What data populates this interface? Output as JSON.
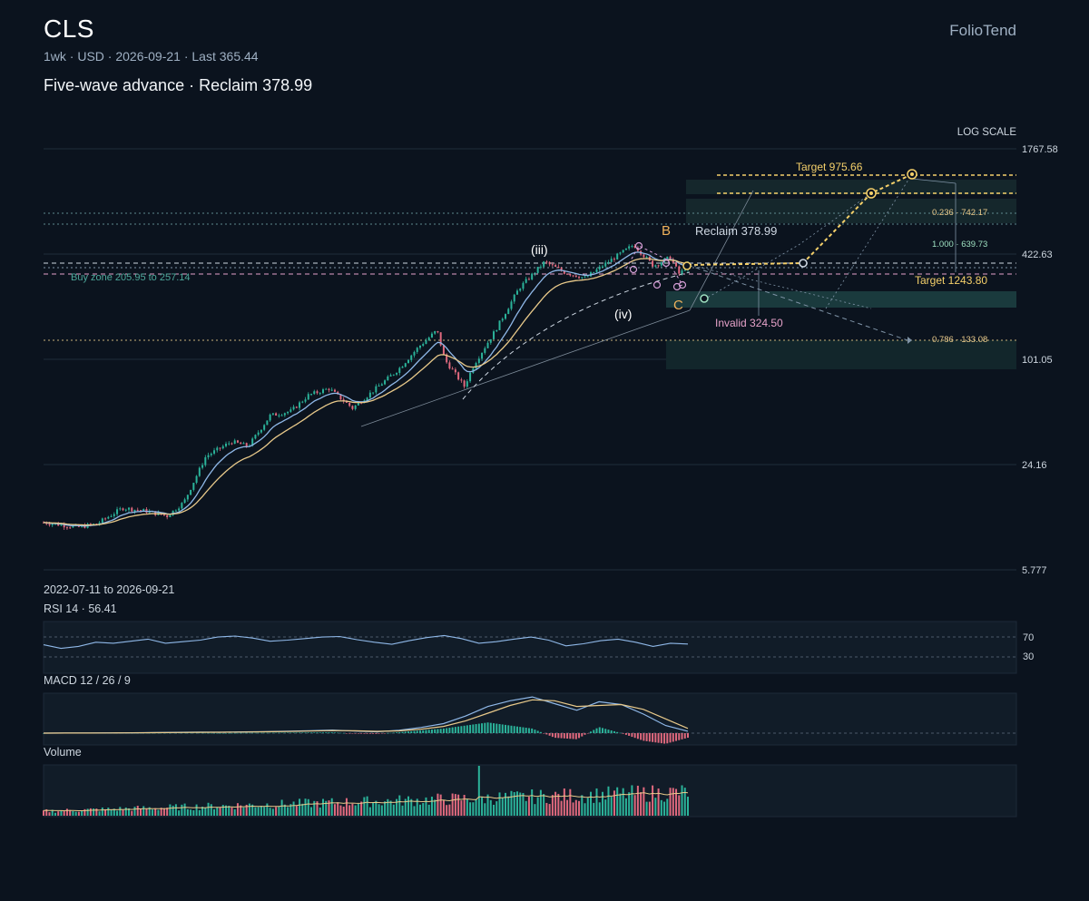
{
  "header": {
    "ticker": "CLS",
    "meta": "1wk · USD · 2026-09-21 · Last 365.44",
    "headline": "Five-wave advance · Reclaim 378.99",
    "brand": "FolioTend"
  },
  "colors": {
    "background": "#0b131e",
    "panel": "#111c28",
    "up": "#2bb39a",
    "down": "#e0697e",
    "ma_fast": "#8fb8e8",
    "ma_slow": "#e8c98a",
    "target": "#f5d06a",
    "invalid": "#e6a2c9",
    "muted": "#9fb0c3"
  },
  "chart_data": {
    "type": "candlestick",
    "scale": "log",
    "scale_label": "LOG SCALE",
    "date_range": "2022-07-11 to 2026-09-21",
    "y_ticks": [
      "1767.58",
      "422.63",
      "101.05",
      "24.16",
      "5.777"
    ],
    "y_tick_values": [
      1767.58,
      422.63,
      101.05,
      24.16,
      5.777
    ],
    "last_price": 365.44,
    "x_range": [
      "2022-07-11",
      "2026-09-21"
    ],
    "price_path": [
      [
        "2022-07-11",
        11.0
      ],
      [
        "2022-10-01",
        10.3
      ],
      [
        "2022-11-15",
        10.8
      ],
      [
        "2023-01-15",
        13.4
      ],
      [
        "2023-03-15",
        12.8
      ],
      [
        "2023-05-01",
        12.0
      ],
      [
        "2023-06-10",
        14.5
      ],
      [
        "2023-08-01",
        27.0
      ],
      [
        "2023-10-01",
        33.0
      ],
      [
        "2023-11-10",
        31.0
      ],
      [
        "2024-01-01",
        47.0
      ],
      [
        "2024-02-20",
        50.0
      ],
      [
        "2024-04-01",
        62.0
      ],
      [
        "2024-05-20",
        68.0
      ],
      [
        "2024-07-15",
        52.0
      ],
      [
        "2024-09-15",
        70.0
      ],
      [
        "2024-11-01",
        88.0
      ],
      [
        "2024-12-20",
        120.0
      ],
      [
        "2025-02-01",
        150.0
      ],
      [
        "2025-02-20",
        100.0
      ],
      [
        "2025-04-07",
        70.0
      ],
      [
        "2025-05-01",
        95.0
      ],
      [
        "2025-06-20",
        150.0
      ],
      [
        "2025-08-15",
        265.0
      ],
      [
        "2025-10-15",
        380.0
      ],
      [
        "2025-12-01",
        330.0
      ],
      [
        "2026-01-20",
        305.0
      ],
      [
        "2026-03-15",
        380.0
      ],
      [
        "2026-05-15",
        480.0
      ],
      [
        "2026-07-01",
        360.0
      ],
      [
        "2026-08-10",
        405.0
      ],
      [
        "2026-09-01",
        320.0
      ],
      [
        "2026-09-21",
        365.44
      ]
    ],
    "levels": [
      {
        "label": "Target 975.66",
        "value": 975.66,
        "style": "target"
      },
      {
        "label": "Target 1243.80",
        "value": 1243.8,
        "style": "target"
      },
      {
        "label": "Reclaim 378.99",
        "value": 378.99,
        "style": "reclaim"
      },
      {
        "label": "Invalid 324.50",
        "value": 324.5,
        "style": "invalid"
      }
    ],
    "fib_levels": [
      {
        "label": "0.236 · 742.17",
        "value": 742.17
      },
      {
        "label": "1.000 · 639.73",
        "value": 639.73
      },
      {
        "label": "0.786 · 133.08",
        "value": 133.08
      }
    ],
    "buy_zone": {
      "label": "Buy zone 205.95 to 257.14",
      "low": 205.95,
      "high": 257.14
    },
    "wave_labels": [
      {
        "text": "(iii)",
        "date": "2025-10-20",
        "value": 470.0
      },
      {
        "text": "(iv)",
        "date": "2026-01-20",
        "value": 240.0
      },
      {
        "text": "B",
        "date": "2026-05-25",
        "value": 560.0
      },
      {
        "text": "C",
        "date": "2026-06-01",
        "value": 270.0
      }
    ]
  },
  "panels": {
    "rsi": {
      "label": "RSI 14 · 56.41",
      "value": 56.41,
      "levels": [
        "70",
        "30"
      ],
      "series": [
        55,
        48,
        52,
        60,
        58,
        62,
        66,
        58,
        61,
        64,
        70,
        72,
        68,
        62,
        64,
        67,
        70,
        71,
        65,
        60,
        56,
        63,
        69,
        73,
        67,
        58,
        61,
        66,
        70,
        64,
        53,
        57,
        63,
        66,
        60,
        52,
        58,
        56.41
      ]
    },
    "macd": {
      "label": "MACD 12 / 26 / 9",
      "series": [
        0.0,
        0.1,
        0.2,
        0.3,
        0.4,
        0.6,
        0.9,
        1.1,
        1.0,
        1.3,
        1.6,
        2.0,
        2.6,
        3.2,
        2.2,
        1.4,
        3.0,
        6.0,
        10.0,
        18.0,
        28.0,
        34.0,
        38.0,
        31.0,
        24.0,
        33.0,
        30.0,
        20.0,
        8.0,
        2.0
      ],
      "signal": [
        0.0,
        0.05,
        0.1,
        0.2,
        0.3,
        0.45,
        0.7,
        0.9,
        1.0,
        1.15,
        1.4,
        1.7,
        2.2,
        2.7,
        2.5,
        1.9,
        2.4,
        4.2,
        7.0,
        13.0,
        21.0,
        29.0,
        35.0,
        34.0,
        28.0,
        29.0,
        30.0,
        25.0,
        15.0,
        5.0
      ]
    },
    "volume": {
      "label": "Volume"
    }
  }
}
